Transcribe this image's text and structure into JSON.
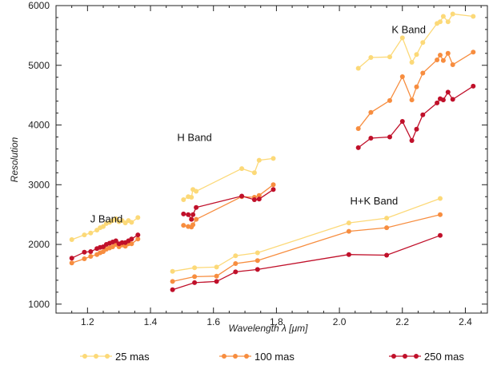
{
  "chart_data": {
    "type": "line",
    "title": "",
    "xlabel": "Wavelength λ [μm]",
    "ylabel": "Resolution",
    "xlim": [
      1.1,
      2.47
    ],
    "ylim": [
      850,
      6000
    ],
    "xticks": [
      1.2,
      1.4,
      1.6,
      1.8,
      2.0,
      2.2,
      2.4
    ],
    "xtick_labels": [
      "1.2",
      "1.4",
      "1.6",
      "1.8",
      "2.0",
      "2.2",
      "2.4"
    ],
    "yticks": [
      1000,
      2000,
      3000,
      4000,
      5000,
      6000
    ],
    "ytick_labels": [
      "1000",
      "2000",
      "3000",
      "4000",
      "5000",
      "6000"
    ],
    "grid": false,
    "legend_position": "bottom",
    "annotations": [
      {
        "text": "J Band",
        "x": 1.26,
        "y": 2370
      },
      {
        "text": "H Band",
        "x": 1.54,
        "y": 3730
      },
      {
        "text": "H+K Band",
        "x": 2.11,
        "y": 2670
      },
      {
        "text": "K Band",
        "x": 2.22,
        "y": 5540
      }
    ],
    "series": [
      {
        "name": "25 mas",
        "color": "#fcd978",
        "segments": [
          {
            "band": "J",
            "points": [
              [
                1.15,
                2080
              ],
              [
                1.19,
                2160
              ],
              [
                1.21,
                2190
              ],
              [
                1.23,
                2240
              ],
              [
                1.24,
                2280
              ],
              [
                1.25,
                2300
              ],
              [
                1.26,
                2350
              ],
              [
                1.27,
                2370
              ],
              [
                1.28,
                2400
              ],
              [
                1.29,
                2430
              ],
              [
                1.3,
                2380
              ],
              [
                1.31,
                2400
              ],
              [
                1.32,
                2360
              ],
              [
                1.33,
                2400
              ],
              [
                1.34,
                2370
              ],
              [
                1.36,
                2450
              ]
            ]
          },
          {
            "band": "H",
            "points": [
              [
                1.505,
                2750
              ],
              [
                1.52,
                2800
              ],
              [
                1.53,
                2790
              ],
              [
                1.535,
                2920
              ],
              [
                1.545,
                2890
              ],
              [
                1.69,
                3270
              ],
              [
                1.73,
                3200
              ],
              [
                1.745,
                3410
              ],
              [
                1.79,
                3440
              ]
            ]
          },
          {
            "band": "K",
            "points": [
              [
                2.06,
                4950
              ],
              [
                2.1,
                5130
              ],
              [
                2.16,
                5140
              ],
              [
                2.2,
                5460
              ],
              [
                2.23,
                5050
              ],
              [
                2.245,
                5180
              ],
              [
                2.265,
                5380
              ],
              [
                2.31,
                5700
              ],
              [
                2.32,
                5730
              ],
              [
                2.33,
                5820
              ],
              [
                2.345,
                5730
              ],
              [
                2.36,
                5860
              ],
              [
                2.425,
                5820
              ]
            ]
          },
          {
            "band": "H+K",
            "points": [
              [
                1.47,
                1550
              ],
              [
                1.54,
                1610
              ],
              [
                1.61,
                1620
              ],
              [
                1.67,
                1810
              ],
              [
                1.74,
                1860
              ],
              [
                2.03,
                2360
              ],
              [
                2.15,
                2440
              ],
              [
                2.32,
                2770
              ]
            ]
          }
        ]
      },
      {
        "name": "100 mas",
        "color": "#f78d3f",
        "segments": [
          {
            "band": "J",
            "points": [
              [
                1.15,
                1690
              ],
              [
                1.19,
                1760
              ],
              [
                1.21,
                1800
              ],
              [
                1.23,
                1830
              ],
              [
                1.24,
                1860
              ],
              [
                1.25,
                1880
              ],
              [
                1.26,
                1920
              ],
              [
                1.27,
                1940
              ],
              [
                1.28,
                1960
              ],
              [
                1.29,
                2000
              ],
              [
                1.3,
                1960
              ],
              [
                1.31,
                1990
              ],
              [
                1.32,
                1970
              ],
              [
                1.33,
                2010
              ],
              [
                1.34,
                2010
              ],
              [
                1.36,
                2090
              ]
            ]
          },
          {
            "band": "H",
            "points": [
              [
                1.505,
                2320
              ],
              [
                1.52,
                2300
              ],
              [
                1.53,
                2290
              ],
              [
                1.535,
                2330
              ],
              [
                1.545,
                2420
              ],
              [
                1.69,
                2800
              ],
              [
                1.73,
                2790
              ],
              [
                1.745,
                2820
              ],
              [
                1.79,
                3000
              ]
            ]
          },
          {
            "band": "K",
            "points": [
              [
                2.06,
                3940
              ],
              [
                2.1,
                4210
              ],
              [
                2.16,
                4410
              ],
              [
                2.2,
                4810
              ],
              [
                2.23,
                4420
              ],
              [
                2.245,
                4640
              ],
              [
                2.265,
                4870
              ],
              [
                2.31,
                5090
              ],
              [
                2.32,
                5170
              ],
              [
                2.33,
                5080
              ],
              [
                2.345,
                5200
              ],
              [
                2.36,
                5010
              ],
              [
                2.425,
                5220
              ]
            ]
          },
          {
            "band": "H+K",
            "points": [
              [
                1.47,
                1380
              ],
              [
                1.54,
                1460
              ],
              [
                1.61,
                1470
              ],
              [
                1.67,
                1680
              ],
              [
                1.74,
                1730
              ],
              [
                2.03,
                2220
              ],
              [
                2.15,
                2280
              ],
              [
                2.32,
                2500
              ]
            ]
          }
        ]
      },
      {
        "name": "250 mas",
        "color": "#c0102a",
        "segments": [
          {
            "band": "J",
            "points": [
              [
                1.15,
                1770
              ],
              [
                1.19,
                1870
              ],
              [
                1.21,
                1880
              ],
              [
                1.23,
                1930
              ],
              [
                1.24,
                1950
              ],
              [
                1.25,
                1960
              ],
              [
                1.26,
                2000
              ],
              [
                1.27,
                2020
              ],
              [
                1.28,
                2040
              ],
              [
                1.29,
                2060
              ],
              [
                1.3,
                2010
              ],
              [
                1.31,
                2030
              ],
              [
                1.32,
                2030
              ],
              [
                1.33,
                2060
              ],
              [
                1.34,
                2090
              ],
              [
                1.36,
                2160
              ]
            ]
          },
          {
            "band": "H",
            "points": [
              [
                1.505,
                2510
              ],
              [
                1.52,
                2500
              ],
              [
                1.53,
                2420
              ],
              [
                1.535,
                2500
              ],
              [
                1.545,
                2620
              ],
              [
                1.69,
                2810
              ],
              [
                1.73,
                2750
              ],
              [
                1.745,
                2760
              ],
              [
                1.79,
                2920
              ]
            ]
          },
          {
            "band": "K",
            "points": [
              [
                2.06,
                3620
              ],
              [
                2.1,
                3780
              ],
              [
                2.16,
                3800
              ],
              [
                2.2,
                4060
              ],
              [
                2.23,
                3740
              ],
              [
                2.245,
                3930
              ],
              [
                2.265,
                4170
              ],
              [
                2.31,
                4370
              ],
              [
                2.32,
                4440
              ],
              [
                2.33,
                4420
              ],
              [
                2.345,
                4550
              ],
              [
                2.36,
                4430
              ],
              [
                2.425,
                4650
              ]
            ]
          },
          {
            "band": "H+K",
            "points": [
              [
                1.47,
                1240
              ],
              [
                1.54,
                1360
              ],
              [
                1.61,
                1380
              ],
              [
                1.67,
                1540
              ],
              [
                1.74,
                1580
              ],
              [
                2.03,
                1830
              ],
              [
                2.15,
                1820
              ],
              [
                2.32,
                2150
              ]
            ]
          }
        ]
      }
    ]
  }
}
